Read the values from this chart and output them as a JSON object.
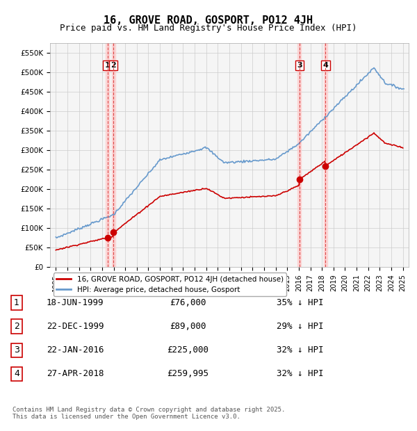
{
  "title": "16, GROVE ROAD, GOSPORT, PO12 4JH",
  "subtitle": "Price paid vs. HM Land Registry's House Price Index (HPI)",
  "footnote": "Contains HM Land Registry data © Crown copyright and database right 2025.\nThis data is licensed under the Open Government Licence v3.0.",
  "legend_labels": [
    "16, GROVE ROAD, GOSPORT, PO12 4JH (detached house)",
    "HPI: Average price, detached house, Gosport"
  ],
  "legend_colors": [
    "#cc0000",
    "#6699cc"
  ],
  "sale_points": [
    {
      "label": "1",
      "date_num": 1999.46,
      "price": 76000,
      "date_str": "18-JUN-1999",
      "pct": "35% ↓ HPI"
    },
    {
      "label": "2",
      "date_num": 1999.98,
      "price": 89000,
      "date_str": "22-DEC-1999",
      "pct": "29% ↓ HPI"
    },
    {
      "label": "3",
      "date_num": 2016.06,
      "price": 225000,
      "date_str": "22-JAN-2016",
      "pct": "32% ↓ HPI"
    },
    {
      "label": "4",
      "date_num": 2018.32,
      "price": 259995,
      "date_str": "27-APR-2018",
      "pct": "32% ↓ HPI"
    }
  ],
  "table_rows": [
    {
      "num": "1",
      "date": "18-JUN-1999",
      "price": "£76,000",
      "hpi": "35% ↓ HPI"
    },
    {
      "num": "2",
      "date": "22-DEC-1999",
      "price": "£89,000",
      "hpi": "29% ↓ HPI"
    },
    {
      "num": "3",
      "date": "22-JAN-2016",
      "price": "£225,000",
      "hpi": "32% ↓ HPI"
    },
    {
      "num": "4",
      "date": "27-APR-2018",
      "price": "£259,995",
      "hpi": "32% ↓ HPI"
    }
  ],
  "ylim": [
    0,
    575000
  ],
  "xlim": [
    1994.5,
    2025.5
  ],
  "yticks": [
    0,
    50000,
    100000,
    150000,
    200000,
    250000,
    300000,
    350000,
    400000,
    450000,
    500000,
    550000
  ],
  "ytick_labels": [
    "£0",
    "£50K",
    "£100K",
    "£150K",
    "£200K",
    "£250K",
    "£300K",
    "£350K",
    "£400K",
    "£450K",
    "£500K",
    "£550K"
  ],
  "xticks": [
    1995,
    1996,
    1997,
    1998,
    1999,
    2000,
    2001,
    2002,
    2003,
    2004,
    2005,
    2006,
    2007,
    2008,
    2009,
    2010,
    2011,
    2012,
    2013,
    2014,
    2015,
    2016,
    2017,
    2018,
    2019,
    2020,
    2021,
    2022,
    2023,
    2024,
    2025
  ],
  "grid_color": "#cccccc",
  "bg_color": "#ffffff",
  "plot_bg": "#f5f5f5",
  "vline_color": "#dd4444",
  "vline_shade": "#ffcccc",
  "hpi_color": "#6699cc",
  "sale_color": "#cc0000"
}
